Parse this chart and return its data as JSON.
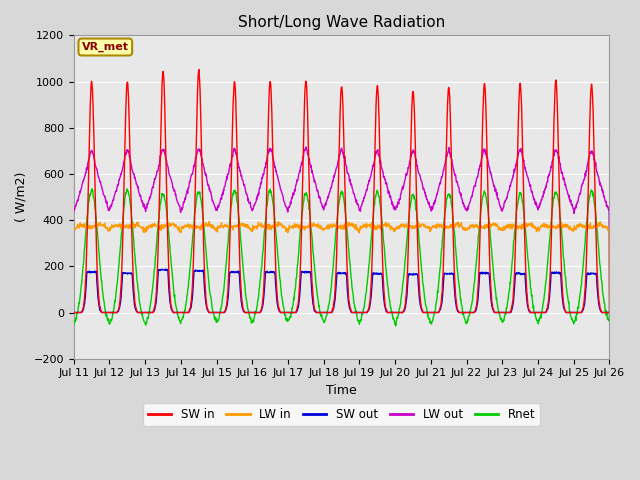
{
  "title": "Short/Long Wave Radiation",
  "xlabel": "Time",
  "ylabel": "( W/m2)",
  "ylim": [
    -200,
    1200
  ],
  "colors": {
    "SW_in": "#ff0000",
    "LW_in": "#ff9900",
    "SW_out": "#0000dd",
    "LW_out": "#cc00cc",
    "Rnet": "#00cc00"
  },
  "legend_labels": [
    "SW in",
    "LW in",
    "SW out",
    "LW out",
    "Rnet"
  ],
  "annotation_text": "VR_met",
  "axes_bg": "#e8e8e8",
  "yticks": [
    -200,
    0,
    200,
    400,
    600,
    800,
    1000,
    1200
  ],
  "xtick_labels": [
    "Jul 11",
    "Jul 12",
    "Jul 13",
    "Jul 14",
    "Jul 15",
    "Jul 16",
    "Jul 17",
    "Jul 18",
    "Jul 19",
    "Jul 20",
    "Jul 21",
    "Jul 22",
    "Jul 23",
    "Jul 24",
    "Jul 25",
    "Jul 26"
  ],
  "line_width": 1.0
}
